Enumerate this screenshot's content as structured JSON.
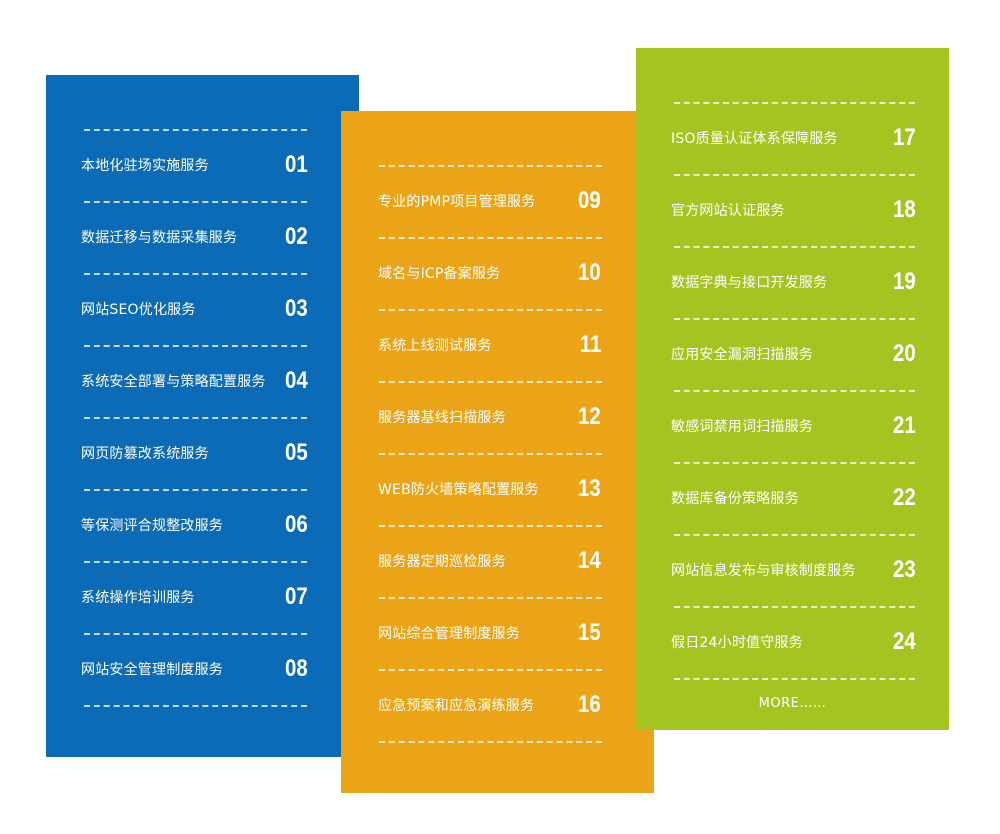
{
  "colors": {
    "blue": "#0c6bb6",
    "orange": "#eba418",
    "green": "#a4c422",
    "text": "#ffffff"
  },
  "panels": [
    {
      "id": "blue",
      "items": [
        {
          "label": "本地化驻场实施服务",
          "num": "01"
        },
        {
          "label": "数据迁移与数据采集服务",
          "num": "02"
        },
        {
          "label": "网站SEO优化服务",
          "num": "03"
        },
        {
          "label": "系统安全部署与策略配置服务",
          "num": "04"
        },
        {
          "label": "网页防篡改系统服务",
          "num": "05"
        },
        {
          "label": "等保测评合规整改服务",
          "num": "06"
        },
        {
          "label": "系统操作培训服务",
          "num": "07"
        },
        {
          "label": "网站安全管理制度服务",
          "num": "08"
        }
      ]
    },
    {
      "id": "orange",
      "items": [
        {
          "label": "专业的PMP项目管理服务",
          "num": "09"
        },
        {
          "label": "域名与ICP备案服务",
          "num": "10"
        },
        {
          "label": "系统上线测试服务",
          "num": "11"
        },
        {
          "label": "服务器基线扫描服务",
          "num": "12"
        },
        {
          "label": "WEB防火墙策略配置服务",
          "num": "13"
        },
        {
          "label": "服务器定期巡检服务",
          "num": "14"
        },
        {
          "label": "网站综合管理制度服务",
          "num": "15"
        },
        {
          "label": "应急预案和应急演练服务",
          "num": "16"
        }
      ]
    },
    {
      "id": "green",
      "items": [
        {
          "label": "ISO质量认证体系保障服务",
          "num": "17"
        },
        {
          "label": "官方网站认证服务",
          "num": "18"
        },
        {
          "label": "数据字典与接口开发服务",
          "num": "19"
        },
        {
          "label": "应用安全漏洞扫描服务",
          "num": "20"
        },
        {
          "label": "敏感词禁用词扫描服务",
          "num": "21"
        },
        {
          "label": "数据库备份策略服务",
          "num": "22"
        },
        {
          "label": "网站信息发布与审核制度服务",
          "num": "23"
        },
        {
          "label": "假日24小时值守服务",
          "num": "24"
        }
      ],
      "more": "MORE……"
    }
  ]
}
